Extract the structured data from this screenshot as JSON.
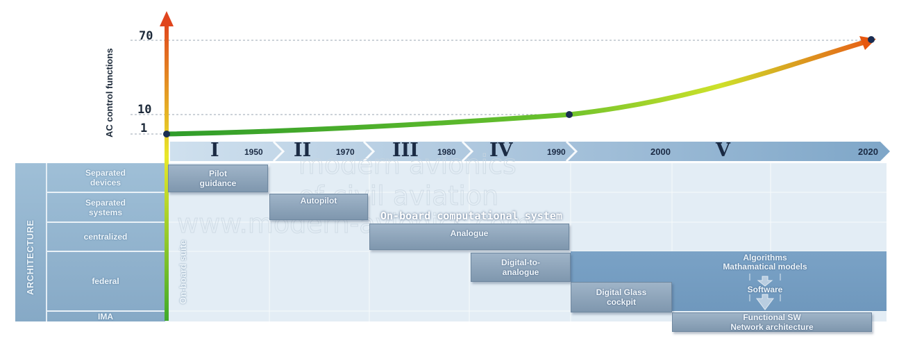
{
  "chart": {
    "y_axis_label": "AC control functions",
    "y_ticks": [
      "1",
      "10",
      "70"
    ],
    "eras": [
      {
        "numeral": "I",
        "end_year": "1950"
      },
      {
        "numeral": "II",
        "end_year": "1970"
      },
      {
        "numeral": "III",
        "end_year": "1980"
      },
      {
        "numeral": "IV",
        "end_year": "1990"
      },
      {
        "numeral": "V",
        "start_year": "2000",
        "end_year": "2020"
      }
    ]
  },
  "architecture": {
    "label": "ARCHITECTURE",
    "rows": [
      {
        "line1": "Separated",
        "line2": "devices"
      },
      {
        "line1": "Separated",
        "line2": "systems"
      },
      {
        "line1": "centralized",
        "line2": ""
      },
      {
        "line1": "federal",
        "line2": ""
      },
      {
        "line1": "IMA",
        "line2": ""
      }
    ],
    "on_board_suite": "On-board suite",
    "on_board_computational_system": "On-board computational system",
    "boxes": {
      "pilot_guidance": {
        "line1": "Pilot",
        "line2": "guidance"
      },
      "autopilot": "Autopilot",
      "analogue": "Analogue",
      "digital_to_analogue": {
        "line1": "Digital-to-",
        "line2": "analogue"
      },
      "digital_glass_cockpit": {
        "line1": "Digital Glass",
        "line2": "cockpit"
      },
      "functional_sw": {
        "line1": "Functional SW",
        "line2": "Network architecture"
      }
    },
    "software_panel": {
      "line1": "Algorithms",
      "line2": "Mathamatical models",
      "line3": "Software"
    }
  },
  "watermark": {
    "line1": "modern avionics",
    "line2": "of civil aviation",
    "line3": "www.modern-avionics.com"
  }
}
